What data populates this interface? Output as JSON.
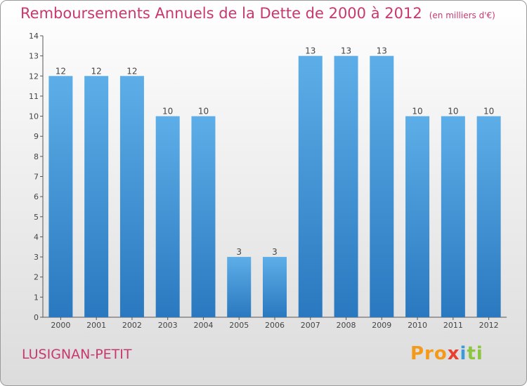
{
  "header": {
    "title": "Remboursements Annuels de la Dette de 2000 à 2012",
    "unit": "(en milliers d'€)"
  },
  "footer": {
    "commune": "LUSIGNAN-PETIT",
    "logo_parts": [
      "Pro",
      "x",
      "i",
      "ti"
    ]
  },
  "colors": {
    "title": "#c8386e",
    "bar_top": "#5daee8",
    "bar_bottom": "#2a78bf"
  },
  "chart_data": {
    "type": "bar",
    "categories": [
      "2000",
      "2001",
      "2002",
      "2003",
      "2004",
      "2005",
      "2006",
      "2007",
      "2008",
      "2009",
      "2010",
      "2011",
      "2012"
    ],
    "values": [
      12,
      12,
      12,
      10,
      10,
      3,
      3,
      13,
      13,
      13,
      10,
      10,
      10
    ],
    "ylim": [
      0,
      14
    ],
    "yticks": [
      0,
      1,
      2,
      3,
      4,
      5,
      6,
      7,
      8,
      9,
      10,
      11,
      12,
      13,
      14
    ],
    "grid": false,
    "data_labels": true
  }
}
